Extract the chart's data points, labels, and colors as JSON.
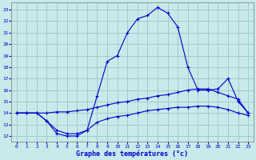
{
  "title": "Graphe des températures (°c)",
  "background_color": "#c8eaea",
  "grid_color": "#a0cccc",
  "line_color": "#0000cc",
  "ylim": [
    11.5,
    23.6
  ],
  "xlim": [
    -0.5,
    23.5
  ],
  "yticks": [
    12,
    13,
    14,
    15,
    16,
    17,
    18,
    19,
    20,
    21,
    22,
    23
  ],
  "xticks": [
    0,
    1,
    2,
    3,
    4,
    5,
    6,
    7,
    8,
    9,
    10,
    11,
    12,
    13,
    14,
    15,
    16,
    17,
    18,
    19,
    20,
    21,
    22,
    23
  ],
  "line1_x": [
    0,
    1,
    2,
    3,
    4,
    5,
    6,
    7,
    8,
    9,
    10,
    11,
    12,
    13,
    14,
    15,
    16,
    17,
    18,
    19,
    20,
    21,
    22,
    23
  ],
  "line1_y": [
    14.0,
    14.0,
    14.0,
    13.3,
    12.2,
    12.0,
    12.0,
    12.5,
    15.5,
    18.5,
    19.0,
    21.0,
    22.2,
    22.5,
    23.2,
    22.7,
    21.5,
    18.0,
    16.0,
    16.0,
    16.1,
    17.0,
    15.0,
    14.0
  ],
  "line2_x": [
    0,
    1,
    2,
    3,
    4,
    5,
    6,
    7,
    8,
    9,
    10,
    11,
    12,
    13,
    14,
    15,
    16,
    17,
    18,
    19,
    20,
    21,
    22,
    23
  ],
  "line2_y": [
    14.0,
    14.0,
    14.0,
    14.0,
    14.1,
    14.1,
    14.2,
    14.3,
    14.5,
    14.7,
    14.9,
    15.0,
    15.2,
    15.3,
    15.5,
    15.6,
    15.8,
    16.0,
    16.1,
    16.1,
    15.8,
    15.5,
    15.2,
    14.0
  ],
  "line3_x": [
    0,
    1,
    2,
    3,
    4,
    5,
    6,
    7,
    8,
    9,
    10,
    11,
    12,
    13,
    14,
    15,
    16,
    17,
    18,
    19,
    20,
    21,
    22,
    23
  ],
  "line3_y": [
    14.0,
    14.0,
    14.0,
    13.3,
    12.5,
    12.2,
    12.2,
    12.5,
    13.2,
    13.5,
    13.7,
    13.8,
    14.0,
    14.2,
    14.3,
    14.4,
    14.5,
    14.5,
    14.6,
    14.6,
    14.5,
    14.3,
    14.0,
    13.8
  ]
}
